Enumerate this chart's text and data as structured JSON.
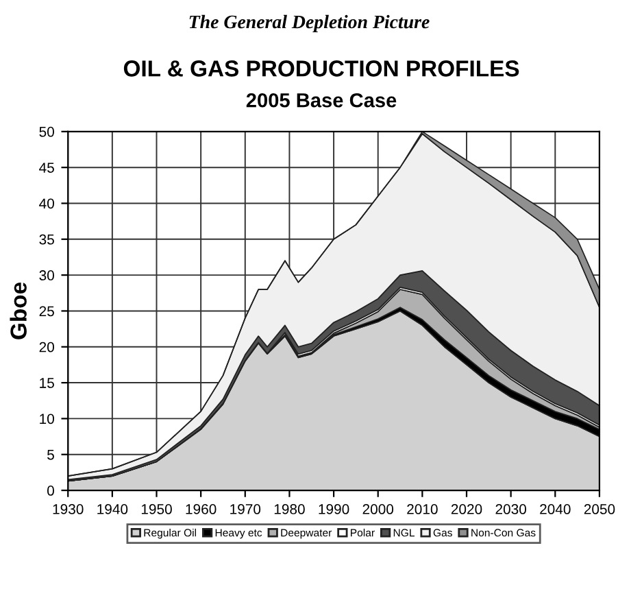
{
  "chart_data": {
    "type": "area",
    "stacked": true,
    "title": "OIL & GAS PRODUCTION PROFILES",
    "subtitle": "2005 Base Case",
    "ylabel": "Gboe",
    "annotations": [
      "The General Depletion Picture"
    ],
    "x": [
      1930,
      1940,
      1950,
      1960,
      1965,
      1970,
      1973,
      1975,
      1979,
      1982,
      1985,
      1990,
      1995,
      2000,
      2005,
      2010,
      2015,
      2020,
      2025,
      2030,
      2035,
      2040,
      2045,
      2050
    ],
    "series": [
      {
        "name": "Regular Oil",
        "color": "#d0d0d0",
        "values": [
          1.3,
          2,
          4,
          8.5,
          12,
          18,
          20.5,
          19,
          21.5,
          18.5,
          19,
          21.5,
          22.5,
          23.5,
          25,
          23,
          20,
          17.5,
          15,
          13,
          11.5,
          10,
          9,
          7.5
        ]
      },
      {
        "name": "Heavy etc",
        "color": "#000000",
        "values": [
          0,
          0,
          0,
          0.1,
          0.1,
          0.1,
          0.1,
          0.1,
          0.2,
          0.2,
          0.2,
          0.2,
          0.3,
          0.4,
          0.5,
          0.8,
          1,
          1,
          1,
          1,
          1,
          1,
          1,
          1
        ]
      },
      {
        "name": "Deepwater",
        "color": "#b0b0b0",
        "values": [
          0,
          0,
          0,
          0,
          0,
          0,
          0,
          0,
          0,
          0,
          0,
          0.2,
          0.5,
          1,
          2.5,
          3.5,
          3,
          2.5,
          2,
          1.5,
          1,
          0.8,
          0.5,
          0.3
        ]
      },
      {
        "name": "Polar",
        "color": "#ffffff",
        "values": [
          0,
          0,
          0,
          0,
          0,
          0,
          0,
          0,
          0.3,
          0.3,
          0.3,
          0.3,
          0.3,
          0.3,
          0.3,
          0.3,
          0.3,
          0.3,
          0.3,
          0.3,
          0.3,
          0.3,
          0.3,
          0.3
        ]
      },
      {
        "name": "NGL",
        "color": "#505050",
        "values": [
          0.2,
          0.2,
          0.3,
          0.4,
          0.6,
          0.8,
          0.9,
          0.9,
          1,
          1,
          1,
          1.2,
          1.3,
          1.5,
          1.7,
          3,
          3.5,
          3.8,
          3.8,
          3.7,
          3.5,
          3.3,
          3,
          2.7
        ]
      },
      {
        "name": "Gas",
        "color": "#f0f0f0",
        "values": [
          0.5,
          0.8,
          1,
          2,
          3.3,
          5.1,
          6.5,
          8,
          9,
          9,
          10.5,
          11.6,
          12.1,
          14.3,
          15,
          19.1,
          19.4,
          19.9,
          20.7,
          21,
          20.9,
          20.6,
          18.9,
          13.7
        ]
      },
      {
        "name": "Non-Con Gas",
        "color": "#909090",
        "values": [
          0,
          0,
          0,
          0,
          0,
          0,
          0,
          0,
          0,
          0,
          0,
          0,
          0,
          0,
          0,
          0.3,
          0.8,
          1,
          1.2,
          1.5,
          1.8,
          2,
          2.3,
          2.5
        ]
      }
    ],
    "xlim": [
      1930,
      2050
    ],
    "xticks": [
      1930,
      1940,
      1950,
      1960,
      1970,
      1980,
      1990,
      2000,
      2010,
      2020,
      2030,
      2040,
      2050
    ],
    "ylim": [
      0,
      50
    ],
    "yticks": [
      0,
      5,
      10,
      15,
      20,
      25,
      30,
      35,
      40,
      45,
      50
    ],
    "grid": true,
    "legend": "bottom"
  }
}
